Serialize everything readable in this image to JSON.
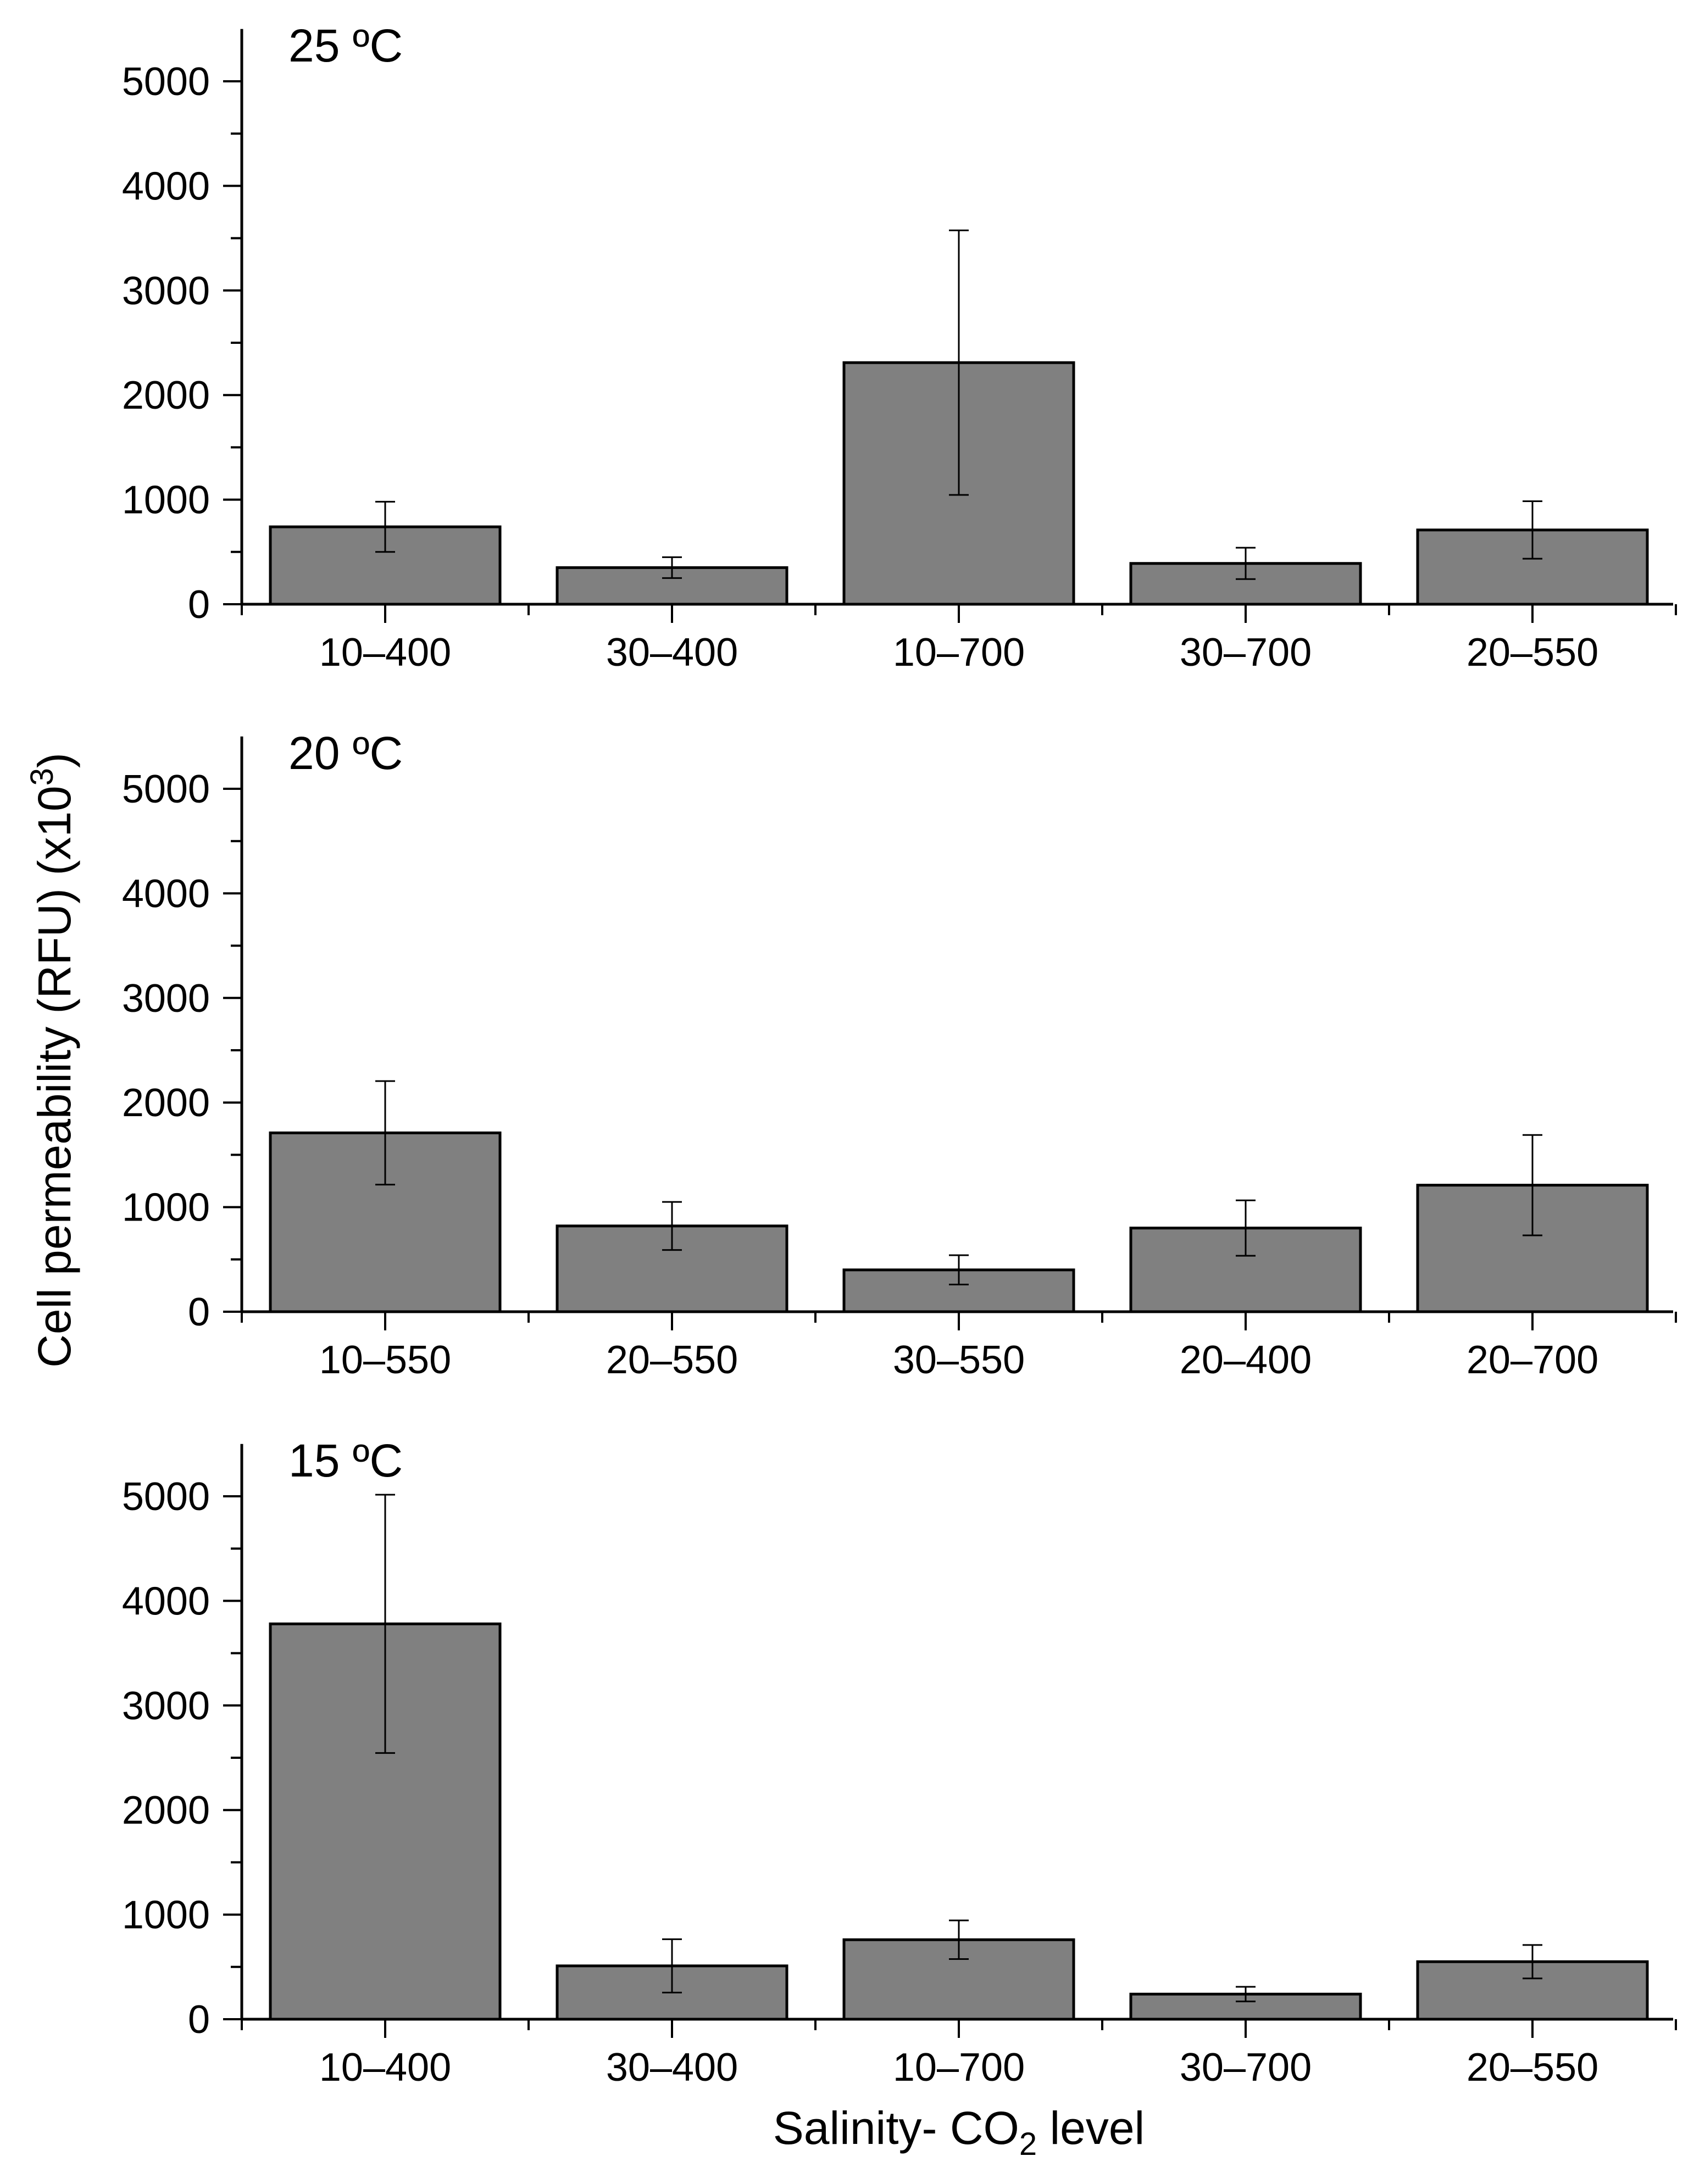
{
  "figure": {
    "ylabel": "Cell permeability (RFU) (x10",
    "ylabel_sup": "3",
    "ylabel_close": ")",
    "xlabel_pre": "Salinity- CO",
    "xlabel_sub": "2",
    "xlabel_post": " level"
  },
  "colors": {
    "bar_fill": "#808080",
    "stroke": "#000000",
    "background": "#ffffff"
  },
  "chart_data": [
    {
      "type": "bar",
      "title": "25 ºC",
      "categories": [
        "10–400",
        "30–400",
        "10–700",
        "30–700",
        "20–550"
      ],
      "values": [
        740,
        350,
        2310,
        390,
        710
      ],
      "error": [
        240,
        100,
        1265,
        150,
        275
      ],
      "yticks": [
        "0",
        "1000",
        "2000",
        "3000",
        "4000",
        "5000"
      ],
      "ylim": [
        0,
        5500
      ],
      "grid": false
    },
    {
      "type": "bar",
      "title": "20 ºC",
      "categories": [
        "10–550",
        "20–550",
        "30–550",
        "20–400",
        "20–700"
      ],
      "values": [
        1710,
        820,
        400,
        800,
        1210
      ],
      "error": [
        495,
        230,
        140,
        265,
        480
      ],
      "yticks": [
        "0",
        "1000",
        "2000",
        "3000",
        "4000",
        "5000"
      ],
      "ylim": [
        0,
        5500
      ],
      "grid": false
    },
    {
      "type": "bar",
      "title": "15 ºC",
      "categories": [
        "10–400",
        "30–400",
        "10–700",
        "30–700",
        "20–550"
      ],
      "values": [
        3780,
        510,
        760,
        240,
        550
      ],
      "error": [
        1235,
        255,
        185,
        70,
        160
      ],
      "yticks": [
        "0",
        "1000",
        "2000",
        "3000",
        "4000",
        "5000"
      ],
      "ylim": [
        0,
        5500
      ],
      "grid": false
    }
  ]
}
